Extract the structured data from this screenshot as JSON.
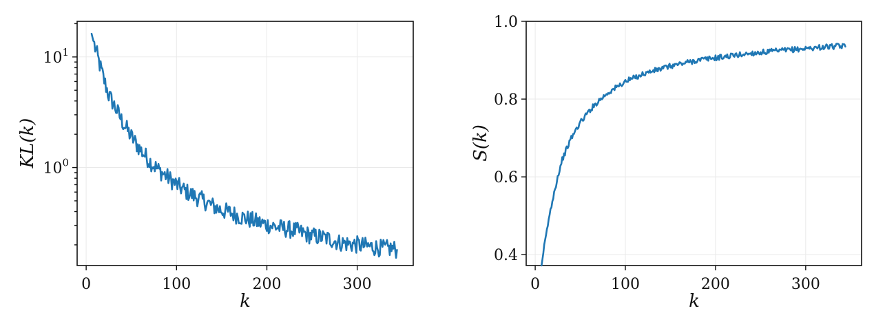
{
  "chart_data": [
    {
      "type": "line",
      "title": "",
      "xlabel": "k",
      "ylabel": "KL(k)",
      "yscale": "log",
      "xlim": [
        -10,
        362
      ],
      "ylim": [
        0.13,
        21
      ],
      "xticks": [
        0,
        100,
        200,
        300
      ],
      "xtick_labels": [
        "0",
        "100",
        "200",
        "300"
      ],
      "yticks": [
        1,
        10
      ],
      "ytick_labels": [
        "10^0",
        "10^1"
      ],
      "grid": true,
      "series": [
        {
          "color": "#1f77b4",
          "x": [
            6,
            10,
            15,
            20,
            25,
            30,
            40,
            50,
            60,
            70,
            80,
            90,
            100,
            110,
            120,
            130,
            140,
            150,
            160,
            170,
            180,
            190,
            200,
            210,
            220,
            230,
            240,
            250,
            260,
            270,
            280,
            290,
            300,
            310,
            320,
            330,
            340,
            344
          ],
          "y": [
            16.2,
            12.0,
            8.5,
            6.1,
            4.5,
            3.8,
            2.6,
            1.9,
            1.45,
            1.15,
            0.95,
            0.82,
            0.7,
            0.61,
            0.55,
            0.5,
            0.45,
            0.41,
            0.39,
            0.36,
            0.34,
            0.32,
            0.305,
            0.29,
            0.28,
            0.27,
            0.255,
            0.24,
            0.235,
            0.225,
            0.21,
            0.205,
            0.2,
            0.195,
            0.19,
            0.185,
            0.185,
            0.18
          ]
        }
      ]
    },
    {
      "type": "line",
      "title": "",
      "xlabel": "k",
      "ylabel": "S(k)",
      "yscale": "linear",
      "xlim": [
        -10,
        362
      ],
      "ylim": [
        0.372,
        1.0
      ],
      "xticks": [
        0,
        100,
        200,
        300
      ],
      "xtick_labels": [
        "0",
        "100",
        "200",
        "300"
      ],
      "yticks": [
        0.4,
        0.6,
        0.8,
        1.0
      ],
      "ytick_labels": [
        "0.4",
        "0.6",
        "0.8",
        "1.0"
      ],
      "grid": true,
      "series": [
        {
          "color": "#1f77b4",
          "x": [
            7,
            10,
            15,
            20,
            25,
            30,
            40,
            50,
            60,
            70,
            80,
            90,
            100,
            110,
            120,
            130,
            140,
            150,
            160,
            170,
            180,
            190,
            200,
            210,
            220,
            230,
            240,
            250,
            260,
            270,
            280,
            290,
            300,
            310,
            320,
            330,
            340,
            344
          ],
          "y": [
            0.372,
            0.42,
            0.49,
            0.55,
            0.6,
            0.645,
            0.7,
            0.74,
            0.77,
            0.795,
            0.815,
            0.83,
            0.845,
            0.855,
            0.865,
            0.872,
            0.878,
            0.885,
            0.89,
            0.895,
            0.9,
            0.903,
            0.906,
            0.909,
            0.912,
            0.915,
            0.918,
            0.92,
            0.922,
            0.924,
            0.926,
            0.928,
            0.93,
            0.932,
            0.934,
            0.935,
            0.936,
            0.935
          ]
        }
      ]
    }
  ]
}
